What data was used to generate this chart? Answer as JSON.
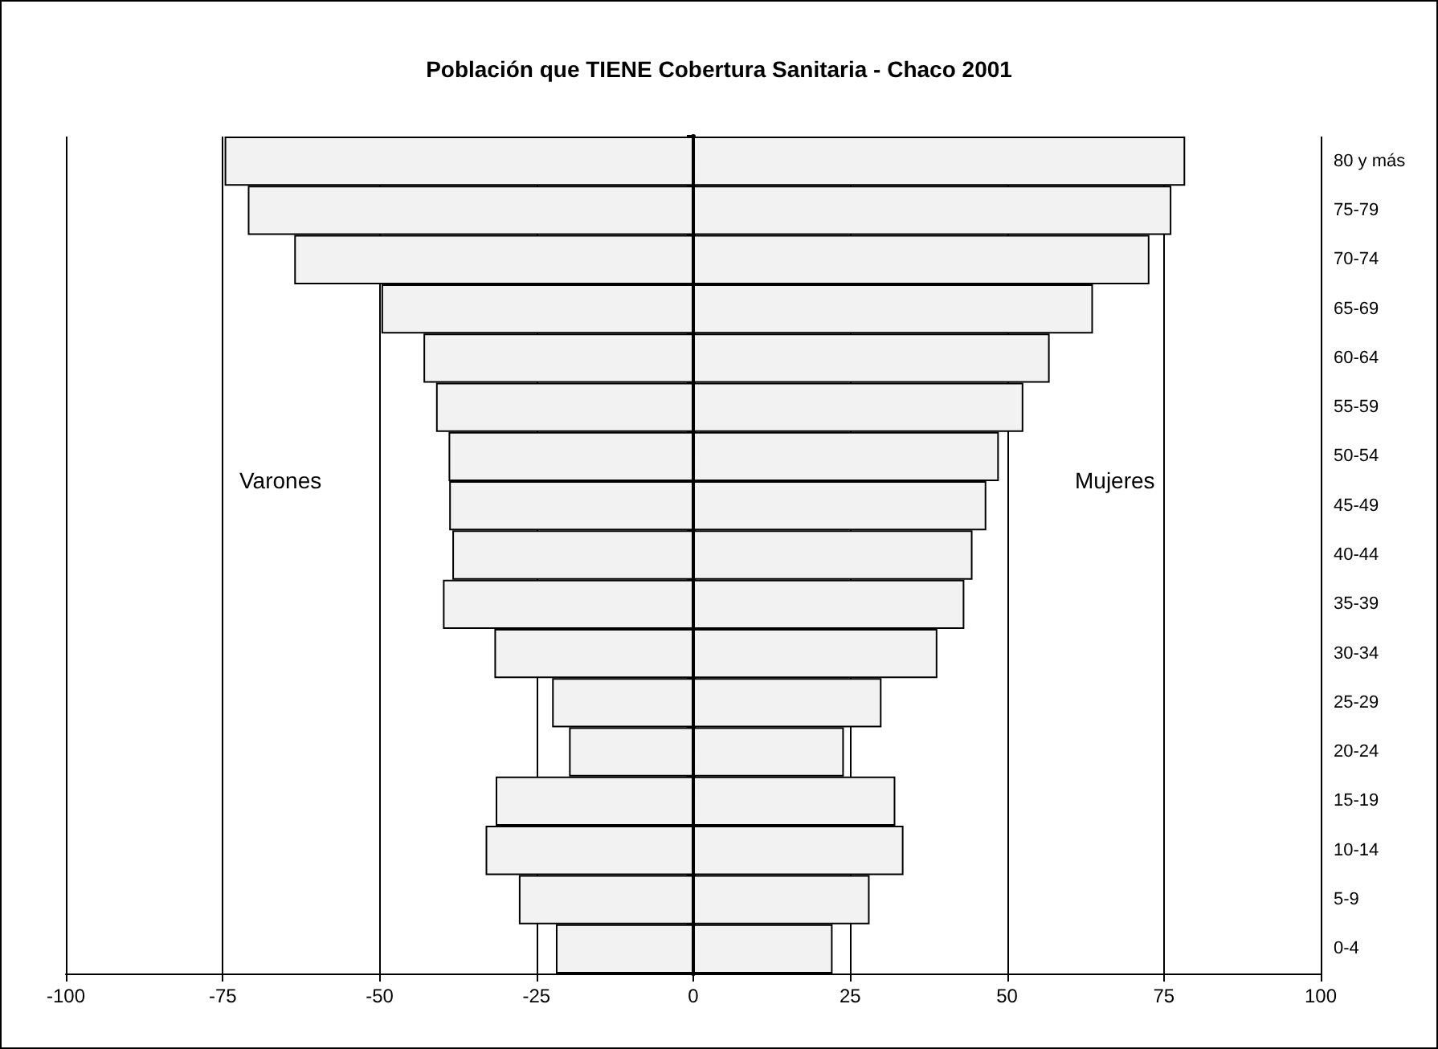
{
  "chart_data": {
    "type": "bar",
    "orientation": "horizontal",
    "title": "Población que TIENE Cobertura Sanitaria - Chaco 2001",
    "categories": [
      "80 y más",
      "75-79",
      "70-74",
      "65-69",
      "60-64",
      "55-59",
      "50-54",
      "45-49",
      "40-44",
      "35-39",
      "30-34",
      "25-29",
      "20-24",
      "15-19",
      "10-14",
      "5-9",
      "0-4"
    ],
    "series": [
      {
        "color": "#f2f2f2",
        "values": [
          -74.7,
          -71.0,
          -63.6,
          -49.7,
          -43.0,
          -41.0,
          -39.0,
          -38.9,
          -38.4,
          -39.9,
          -31.7,
          -22.5,
          -19.8,
          -31.5,
          -33.1,
          -27.8,
          -21.9
        ]
      },
      {
        "color": "#f2f2f2",
        "values": [
          78.4,
          76.2,
          72.7,
          63.7,
          56.8,
          52.6,
          48.7,
          46.7,
          44.5,
          43.2,
          38.9,
          30.0,
          24.0,
          32.2,
          33.5,
          28.1,
          22.2
        ]
      }
    ],
    "xlim": [
      -100,
      100
    ],
    "xticks": [
      -100,
      -75,
      -50,
      -25,
      0,
      25,
      50,
      75,
      100
    ],
    "annotations": [
      "Varones",
      "Mujeres"
    ],
    "grid": "x",
    "stacked": true
  }
}
